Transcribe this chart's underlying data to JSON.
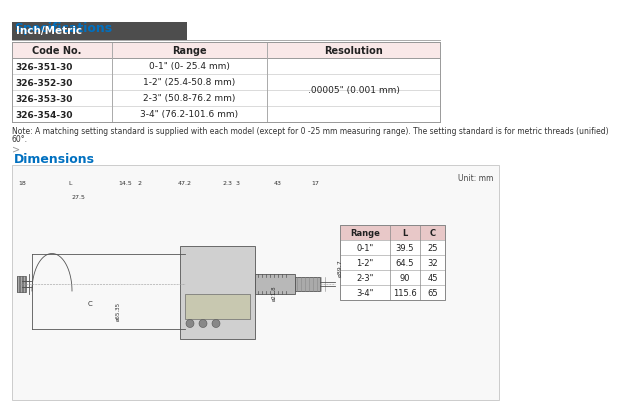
{
  "title_specs": "Specifications",
  "subtitle_inch_metric": "Inch/Metric",
  "table_header": [
    "Code No.",
    "Range",
    "Resolution"
  ],
  "table_rows": [
    [
      "326-351-30",
      "0-1\" (0- 25.4 mm)",
      ""
    ],
    [
      "326-352-30",
      "1-2\" (25.4-50.8 mm)",
      ".00005\" (0.001 mm)"
    ],
    [
      "326-353-30",
      "2-3\" (50.8-76.2 mm)",
      ""
    ],
    [
      "326-354-30",
      "3-4\" (76.2-101.6 mm)",
      ""
    ]
  ],
  "note_text": "Note: A matching setting standard is supplied with each model (except for 0 -25 mm measuring range). The setting standard is for metric threads (unified) 60°.",
  "dimensions_title": "Dimensions",
  "unit_label": "Unit: mm",
  "dim_labels_top": [
    "18",
    "L",
    "14.5",
    "2",
    "47.2",
    "2.3",
    "3",
    "43",
    "17"
  ],
  "dim_27_5": "27.5",
  "dim_right": "ø89.7",
  "dim_barrel": "ø21.8",
  "dim_c": "C",
  "dim_frame": "ø65.35",
  "dim_table_headers": [
    "Range",
    "L",
    "C"
  ],
  "dim_table_rows": [
    [
      "0-1\"",
      "39.5",
      "25"
    ],
    [
      "1-2\"",
      "64.5",
      "32"
    ],
    [
      "2-3\"",
      "90",
      "45"
    ],
    [
      "3-4\"",
      "115.6",
      "65"
    ]
  ],
  "color_title": "#0070C0",
  "color_header_bg": "#4d4d4d",
  "color_header_text": "#ffffff",
  "color_row_bg_light": "#f9e8e8",
  "color_row_bg_white": "#ffffff",
  "color_table_border": "#c0a0a0",
  "color_note_text": "#333333",
  "color_dim_bg": "#f0f0f0",
  "color_dim_border": "#cccccc",
  "color_dim_table_header_bg": "#e8c8c8",
  "bg_color": "#ffffff"
}
